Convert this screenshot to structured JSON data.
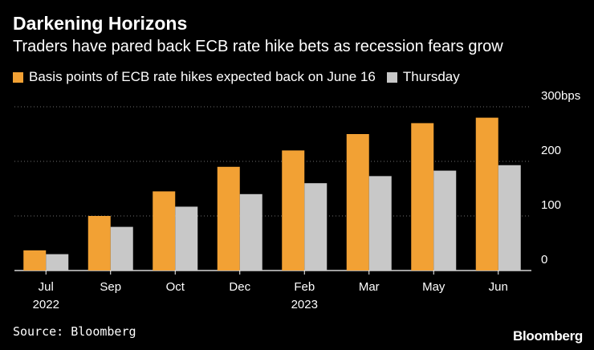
{
  "title": "Darkening Horizons",
  "subtitle": "Traders have pared back ECB rate hike bets as recession fears grow",
  "source": "Source: Bloomberg",
  "logo": "Bloomberg",
  "colors": {
    "series1": "#f2a134",
    "series2": "#c8c8c8",
    "grid": "#6e6e6e",
    "axis": "#ffffff"
  },
  "chart_data": {
    "type": "bar",
    "categories": [
      "Jul",
      "Sep",
      "Oct",
      "Dec",
      "Feb",
      "Mar",
      "May",
      "Jun"
    ],
    "category_sublabels": [
      "2022",
      "",
      "",
      "",
      "2023",
      "",
      "",
      ""
    ],
    "series": [
      {
        "name": "Basis points of ECB rate hikes expected back on June 16",
        "values": [
          37,
          100,
          145,
          190,
          220,
          250,
          270,
          280
        ]
      },
      {
        "name": "Thursday",
        "values": [
          30,
          80,
          117,
          140,
          160,
          173,
          183,
          193
        ]
      }
    ],
    "ylim": [
      0,
      300
    ],
    "yticks": [
      0,
      100,
      200,
      300
    ],
    "ytick_labels": [
      "0",
      "100",
      "200",
      "300bps"
    ],
    "axis_side": "right",
    "grid": true,
    "legend_position": "top-left"
  }
}
